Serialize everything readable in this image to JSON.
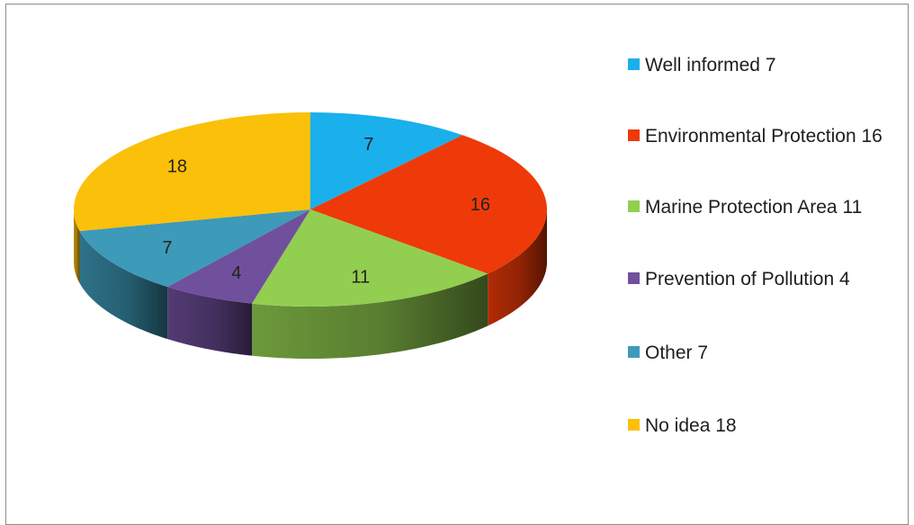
{
  "chart_data": {
    "type": "pie",
    "title": "",
    "categories": [
      "Well informed",
      "Environmental Protection",
      "Marine Protection Area",
      "Prevention of Pollution",
      "Other",
      "No idea"
    ],
    "values": [
      7,
      16,
      11,
      4,
      7,
      18
    ],
    "colors": [
      "#1ab0ec",
      "#ee3a08",
      "#92ce50",
      "#70509c",
      "#3d9ab8",
      "#fbc009"
    ],
    "legend_labels": [
      "Well informed 7",
      "Environmental Protection 16",
      "Marine Protection Area 11",
      "Prevention of Pollution 4",
      "Other 7",
      "No idea 18"
    ],
    "legend_position": "right",
    "style": "3d"
  }
}
